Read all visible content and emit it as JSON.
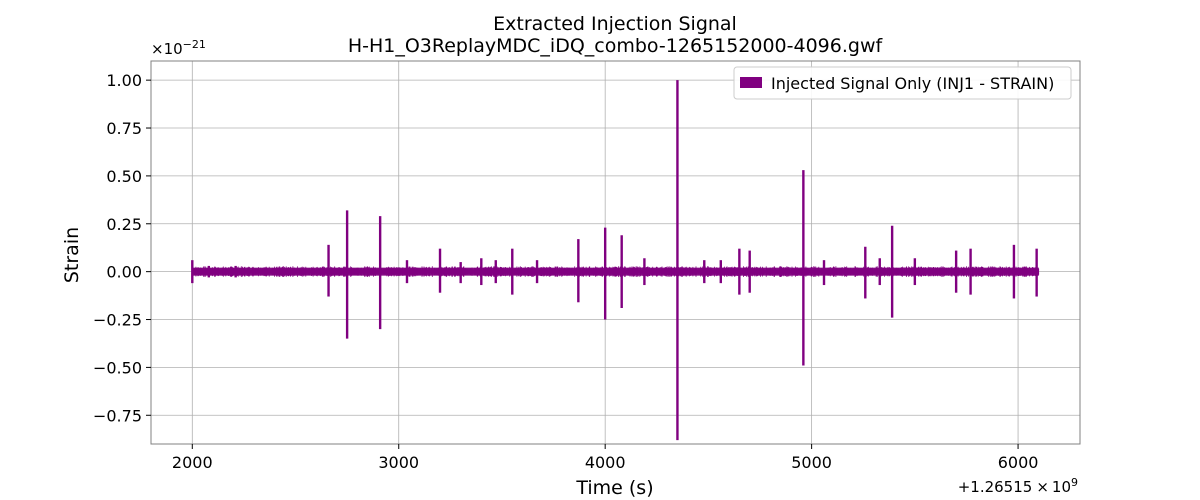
{
  "chart_data": {
    "type": "line",
    "title": "Extracted Injection Signal",
    "subtitle": "H-H1_O3ReplayMDC_iDQ_combo-1265152000-4096.gwf",
    "xlabel": "Time (s)",
    "ylabel": "Strain",
    "x_offset_label": "+1.26515",
    "x_offset_times": "×",
    "x_offset_base": "10",
    "x_offset_exp": "9",
    "y_scale_base": "×10",
    "y_scale_exp": "−21",
    "xlim": [
      1800,
      6300
    ],
    "ylim": [
      -0.9,
      1.1
    ],
    "x_ticks": [
      2000,
      3000,
      4000,
      5000,
      6000
    ],
    "x_tick_labels": [
      "2000",
      "3000",
      "4000",
      "5000",
      "6000"
    ],
    "y_ticks": [
      -0.75,
      -0.5,
      -0.25,
      0.0,
      0.25,
      0.5,
      0.75,
      1.0
    ],
    "y_tick_labels": [
      "−0.75",
      "−0.50",
      "−0.25",
      "0.00",
      "0.25",
      "0.50",
      "0.75",
      "1.00"
    ],
    "grid": true,
    "legend_position": "top-right",
    "series": [
      {
        "name": "Injected Signal Only (INJ1 - STRAIN)",
        "color": "#800080",
        "baseline_range": [
          2000,
          6100
        ],
        "spikes": [
          [
            2000,
            0.06,
            -0.06
          ],
          [
            2080,
            0.03,
            -0.03
          ],
          [
            2210,
            0.03,
            -0.03
          ],
          [
            2660,
            0.14,
            -0.13
          ],
          [
            2750,
            0.32,
            -0.35
          ],
          [
            2910,
            0.29,
            -0.3
          ],
          [
            3040,
            0.06,
            -0.06
          ],
          [
            3200,
            0.12,
            -0.11
          ],
          [
            3300,
            0.05,
            -0.06
          ],
          [
            3400,
            0.07,
            -0.07
          ],
          [
            3470,
            0.06,
            -0.06
          ],
          [
            3550,
            0.12,
            -0.12
          ],
          [
            3670,
            0.06,
            -0.06
          ],
          [
            3870,
            0.17,
            -0.16
          ],
          [
            4000,
            0.23,
            -0.25
          ],
          [
            4080,
            0.19,
            -0.19
          ],
          [
            4190,
            0.07,
            -0.07
          ],
          [
            4350,
            1.0,
            -0.88
          ],
          [
            4480,
            0.06,
            -0.06
          ],
          [
            4560,
            0.06,
            -0.06
          ],
          [
            4650,
            0.12,
            -0.12
          ],
          [
            4700,
            0.11,
            -0.11
          ],
          [
            4960,
            0.53,
            -0.49
          ],
          [
            5060,
            0.06,
            -0.07
          ],
          [
            5260,
            0.13,
            -0.14
          ],
          [
            5330,
            0.07,
            -0.07
          ],
          [
            5390,
            0.24,
            -0.24
          ],
          [
            5500,
            0.07,
            -0.07
          ],
          [
            5700,
            0.11,
            -0.11
          ],
          [
            5770,
            0.12,
            -0.12
          ],
          [
            5980,
            0.14,
            -0.14
          ],
          [
            6090,
            0.12,
            -0.13
          ]
        ]
      }
    ]
  }
}
